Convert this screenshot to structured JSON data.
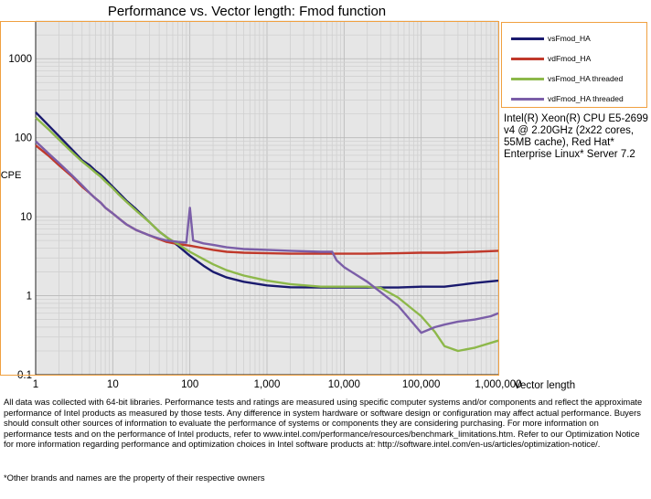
{
  "chart_data": {
    "type": "line",
    "title": "Performance vs. Vector length: Fmod function",
    "xlabel": "Vector length",
    "ylabel": "CPE",
    "x_scale": "log",
    "y_scale": "log",
    "xlim": [
      1,
      1000000
    ],
    "ylim": [
      0.1,
      3000
    ],
    "x_ticks": [
      "1",
      "10",
      "100",
      "1,000",
      "10,000",
      "100,000",
      "1,000,000"
    ],
    "y_ticks": [
      "0.1",
      "1",
      "10",
      "100",
      "1000"
    ],
    "grid": true,
    "legend_position": "top-right",
    "series": [
      {
        "name": "vsFmod_HA",
        "color": "#1a1a6e",
        "x": [
          1,
          1.5,
          2,
          3,
          4,
          5,
          6,
          7,
          8,
          10,
          12,
          15,
          20,
          30,
          40,
          50,
          70,
          100,
          150,
          200,
          300,
          500,
          1000,
          2000,
          5000,
          10000,
          20000,
          50000,
          100000,
          200000,
          500000,
          1000000
        ],
        "y": [
          210,
          140,
          105,
          70,
          52,
          45,
          38,
          34,
          30,
          24,
          20,
          16,
          12.5,
          8.5,
          6.5,
          5.5,
          4.3,
          3.2,
          2.4,
          2.0,
          1.7,
          1.5,
          1.35,
          1.28,
          1.27,
          1.27,
          1.27,
          1.27,
          1.3,
          1.3,
          1.45,
          1.55
        ]
      },
      {
        "name": "vdFmod_HA",
        "color": "#c0392b",
        "x": [
          1,
          1.5,
          2,
          3,
          4,
          5,
          6,
          7,
          8,
          10,
          12,
          15,
          20,
          30,
          40,
          50,
          70,
          100,
          150,
          200,
          300,
          500,
          1000,
          2000,
          5000,
          10000,
          20000,
          50000,
          100000,
          200000,
          500000,
          1000000
        ],
        "y": [
          80,
          58,
          45,
          32,
          24,
          20,
          17,
          15,
          13,
          11,
          9.5,
          8,
          6.8,
          5.8,
          5.2,
          4.8,
          4.5,
          4.3,
          4.0,
          3.8,
          3.6,
          3.5,
          3.45,
          3.4,
          3.4,
          3.4,
          3.4,
          3.45,
          3.5,
          3.5,
          3.6,
          3.7
        ]
      },
      {
        "name": "vsFmod_HA threaded",
        "color": "#8db84a",
        "x": [
          1,
          1.5,
          2,
          3,
          4,
          5,
          6,
          7,
          8,
          10,
          12,
          15,
          20,
          30,
          40,
          50,
          70,
          100,
          150,
          200,
          300,
          500,
          1000,
          2000,
          5000,
          10000,
          20000,
          30000,
          50000,
          100000,
          150000,
          200000,
          300000,
          500000,
          1000000
        ],
        "y": [
          180,
          125,
          95,
          65,
          50,
          42,
          36,
          32,
          28,
          23,
          19,
          15.5,
          12,
          8.5,
          6.5,
          5.5,
          4.5,
          3.6,
          2.9,
          2.5,
          2.1,
          1.8,
          1.55,
          1.4,
          1.3,
          1.3,
          1.3,
          1.25,
          0.95,
          0.55,
          0.35,
          0.23,
          0.2,
          0.22,
          0.27
        ]
      },
      {
        "name": "vdFmod_HA threaded",
        "color": "#7b5ea8",
        "x": [
          1,
          1.5,
          2,
          3,
          4,
          5,
          6,
          7,
          8,
          10,
          12,
          15,
          20,
          30,
          40,
          50,
          70,
          90,
          100,
          110,
          150,
          200,
          300,
          500,
          1000,
          2000,
          5000,
          7000,
          8000,
          10000,
          20000,
          50000,
          100000,
          150000,
          200000,
          300000,
          500000,
          800000,
          1000000
        ],
        "y": [
          90,
          62,
          48,
          33,
          25,
          20,
          17,
          15,
          13,
          11,
          9.5,
          8,
          6.8,
          5.8,
          5.3,
          5.0,
          4.8,
          4.7,
          13,
          5.0,
          4.6,
          4.4,
          4.1,
          3.9,
          3.8,
          3.7,
          3.6,
          3.6,
          2.8,
          2.3,
          1.5,
          0.75,
          0.34,
          0.4,
          0.43,
          0.47,
          0.5,
          0.55,
          0.6
        ]
      }
    ]
  },
  "legend": [
    {
      "label": "vsFmod_HA",
      "color": "#1a1a6e"
    },
    {
      "label": "vdFmod_HA",
      "color": "#c0392b"
    },
    {
      "label": "vsFmod_HA threaded",
      "color": "#8db84a"
    },
    {
      "label": "vdFmod_HA threaded",
      "color": "#7b5ea8"
    }
  ],
  "cpu_note": "Intel(R) Xeon(R) CPU E5-2699 v4 @ 2.20GHz (2x22 cores, 55MB cache), Red Hat* Enterprise Linux* Server 7.2",
  "footer": {
    "disclaimer": "All data was collected with 64-bit libraries. Performance tests and ratings are measured using specific computer systems and/or components and reflect the approximate performance of Intel products as measured by those tests. Any difference in system hardware or software design or configuration may affect actual performance. Buyers should consult other sources of information to evaluate the performance of systems or components they are considering purchasing. For more information on performance tests and on the performance of Intel products, refer to www.intel.com/performance/resources/benchmark_limitations.htm. Refer to our Optimization Notice for more information regarding performance and optimization choices in Intel software products at: http://software.intel.com/en-us/articles/optimization-notice/.",
    "trademark": "*Other brands and names are the property of their respective owners"
  },
  "colors": {
    "frame": "#f0a040",
    "grid": "#d0d0d0",
    "plot_bg": "#e6e6e6"
  }
}
